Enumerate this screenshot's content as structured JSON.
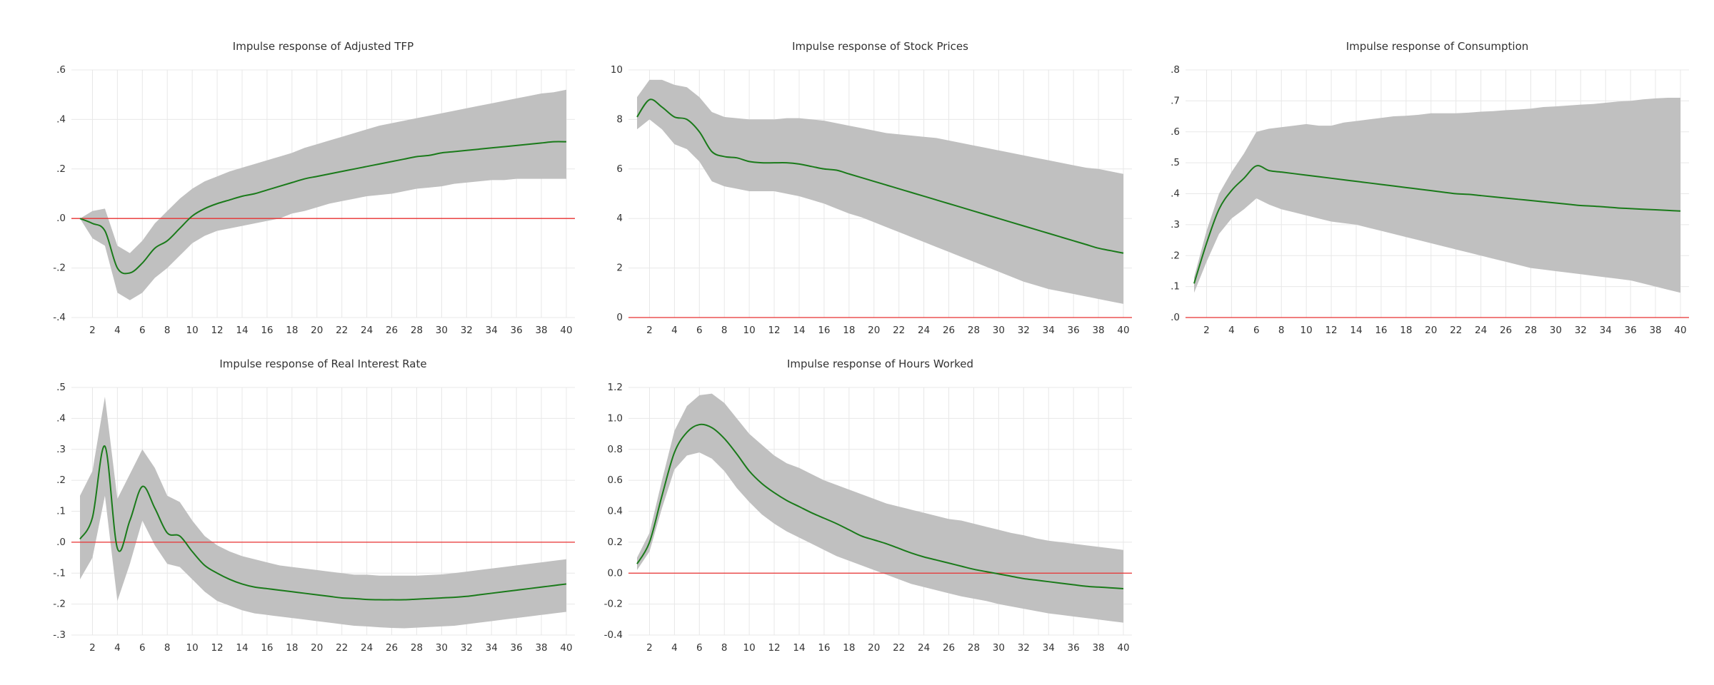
{
  "colors": {
    "band": "#c0c0c0",
    "line": "#1a7a1a",
    "zero": "#e83030",
    "grid": "#e8e8e8",
    "text": "#333333"
  },
  "chart_data": [
    {
      "type": "area",
      "title": "Impulse response of Adjusted TFP",
      "x": [
        1,
        2,
        3,
        4,
        5,
        6,
        7,
        8,
        9,
        10,
        11,
        12,
        13,
        14,
        15,
        16,
        17,
        18,
        19,
        20,
        21,
        22,
        23,
        24,
        25,
        26,
        27,
        28,
        29,
        30,
        31,
        32,
        33,
        34,
        35,
        36,
        37,
        38,
        39,
        40
      ],
      "xticks": [
        2,
        4,
        6,
        8,
        10,
        12,
        14,
        16,
        18,
        20,
        22,
        24,
        26,
        28,
        30,
        32,
        34,
        36,
        38,
        40
      ],
      "ylim": [
        -0.4,
        0.6
      ],
      "yticks": [
        -0.4,
        -0.2,
        0.0,
        0.2,
        0.4,
        0.6
      ],
      "ytick_labels": [
        "-.4",
        "-.2",
        ".0",
        ".2",
        ".4",
        ".6"
      ],
      "zero_line": 0,
      "series": [
        {
          "role": "response",
          "values": [
            0.0,
            -0.02,
            -0.05,
            -0.2,
            -0.22,
            -0.18,
            -0.12,
            -0.09,
            -0.04,
            0.01,
            0.04,
            0.06,
            0.075,
            0.09,
            0.1,
            0.115,
            0.13,
            0.145,
            0.16,
            0.17,
            0.18,
            0.19,
            0.2,
            0.21,
            0.22,
            0.23,
            0.24,
            0.25,
            0.255,
            0.265,
            0.27,
            0.275,
            0.28,
            0.285,
            0.29,
            0.295,
            0.3,
            0.305,
            0.31,
            0.31
          ]
        },
        {
          "role": "upper",
          "values": [
            0.0,
            0.03,
            0.04,
            -0.11,
            -0.14,
            -0.09,
            -0.02,
            0.03,
            0.08,
            0.12,
            0.15,
            0.17,
            0.19,
            0.205,
            0.22,
            0.235,
            0.25,
            0.265,
            0.285,
            0.3,
            0.315,
            0.33,
            0.345,
            0.36,
            0.375,
            0.385,
            0.395,
            0.405,
            0.415,
            0.425,
            0.435,
            0.445,
            0.455,
            0.465,
            0.475,
            0.485,
            0.495,
            0.505,
            0.51,
            0.52
          ]
        },
        {
          "role": "lower",
          "values": [
            0.0,
            -0.08,
            -0.11,
            -0.3,
            -0.33,
            -0.3,
            -0.24,
            -0.2,
            -0.15,
            -0.1,
            -0.07,
            -0.05,
            -0.04,
            -0.03,
            -0.02,
            -0.01,
            0.0,
            0.02,
            0.03,
            0.045,
            0.06,
            0.07,
            0.08,
            0.09,
            0.095,
            0.1,
            0.11,
            0.12,
            0.125,
            0.13,
            0.14,
            0.145,
            0.15,
            0.155,
            0.155,
            0.16,
            0.16,
            0.16,
            0.16,
            0.16
          ]
        }
      ]
    },
    {
      "type": "area",
      "title": "Impulse response of Stock Prices",
      "x": [
        1,
        2,
        3,
        4,
        5,
        6,
        7,
        8,
        9,
        10,
        11,
        12,
        13,
        14,
        15,
        16,
        17,
        18,
        19,
        20,
        21,
        22,
        23,
        24,
        25,
        26,
        27,
        28,
        29,
        30,
        31,
        32,
        33,
        34,
        35,
        36,
        37,
        38,
        39,
        40
      ],
      "xticks": [
        2,
        4,
        6,
        8,
        10,
        12,
        14,
        16,
        18,
        20,
        22,
        24,
        26,
        28,
        30,
        32,
        34,
        36,
        38,
        40
      ],
      "ylim": [
        0,
        10
      ],
      "yticks": [
        0,
        2,
        4,
        6,
        8,
        10
      ],
      "ytick_labels": [
        "0",
        "2",
        "4",
        "6",
        "8",
        "10"
      ],
      "zero_line": 0,
      "series": [
        {
          "role": "response",
          "values": [
            8.1,
            8.8,
            8.5,
            8.1,
            8.0,
            7.5,
            6.7,
            6.5,
            6.45,
            6.3,
            6.25,
            6.25,
            6.25,
            6.2,
            6.1,
            6.0,
            5.95,
            5.8,
            5.65,
            5.5,
            5.35,
            5.2,
            5.05,
            4.9,
            4.75,
            4.6,
            4.45,
            4.3,
            4.15,
            4.0,
            3.85,
            3.7,
            3.55,
            3.4,
            3.25,
            3.1,
            2.95,
            2.8,
            2.7,
            2.6
          ]
        },
        {
          "role": "upper",
          "values": [
            8.9,
            9.6,
            9.6,
            9.4,
            9.3,
            8.9,
            8.3,
            8.1,
            8.05,
            8.0,
            8.0,
            8.0,
            8.05,
            8.05,
            8.0,
            7.95,
            7.85,
            7.75,
            7.65,
            7.55,
            7.45,
            7.4,
            7.35,
            7.3,
            7.25,
            7.15,
            7.05,
            6.95,
            6.85,
            6.75,
            6.65,
            6.55,
            6.45,
            6.35,
            6.25,
            6.15,
            6.05,
            6.0,
            5.9,
            5.8
          ]
        },
        {
          "role": "lower",
          "values": [
            7.6,
            8.0,
            7.6,
            7.0,
            6.8,
            6.3,
            5.5,
            5.3,
            5.2,
            5.1,
            5.1,
            5.1,
            5.0,
            4.9,
            4.75,
            4.6,
            4.4,
            4.2,
            4.05,
            3.85,
            3.65,
            3.45,
            3.25,
            3.05,
            2.85,
            2.65,
            2.45,
            2.25,
            2.05,
            1.85,
            1.65,
            1.45,
            1.3,
            1.15,
            1.05,
            0.95,
            0.85,
            0.75,
            0.65,
            0.55
          ]
        }
      ]
    },
    {
      "type": "area",
      "title": "Impulse response of Consumption",
      "x": [
        1,
        2,
        3,
        4,
        5,
        6,
        7,
        8,
        9,
        10,
        11,
        12,
        13,
        14,
        15,
        16,
        17,
        18,
        19,
        20,
        21,
        22,
        23,
        24,
        25,
        26,
        27,
        28,
        29,
        30,
        31,
        32,
        33,
        34,
        35,
        36,
        37,
        38,
        39,
        40
      ],
      "xticks": [
        2,
        4,
        6,
        8,
        10,
        12,
        14,
        16,
        18,
        20,
        22,
        24,
        26,
        28,
        30,
        32,
        34,
        36,
        38,
        40
      ],
      "ylim": [
        0.0,
        0.8
      ],
      "yticks": [
        0.0,
        0.1,
        0.2,
        0.3,
        0.4,
        0.5,
        0.6,
        0.7,
        0.8
      ],
      "ytick_labels": [
        ".0",
        ".1",
        ".2",
        ".3",
        ".4",
        ".5",
        ".6",
        ".7",
        ".8"
      ],
      "zero_line": 0,
      "series": [
        {
          "role": "response",
          "values": [
            0.11,
            0.24,
            0.35,
            0.41,
            0.45,
            0.49,
            0.475,
            0.47,
            0.465,
            0.46,
            0.455,
            0.45,
            0.445,
            0.44,
            0.435,
            0.43,
            0.425,
            0.42,
            0.415,
            0.41,
            0.405,
            0.4,
            0.398,
            0.394,
            0.39,
            0.386,
            0.382,
            0.378,
            0.374,
            0.37,
            0.366,
            0.362,
            0.36,
            0.357,
            0.354,
            0.352,
            0.35,
            0.348,
            0.346,
            0.344
          ]
        },
        {
          "role": "upper",
          "values": [
            0.13,
            0.28,
            0.4,
            0.47,
            0.53,
            0.6,
            0.61,
            0.615,
            0.62,
            0.625,
            0.62,
            0.62,
            0.63,
            0.635,
            0.64,
            0.645,
            0.65,
            0.652,
            0.655,
            0.66,
            0.66,
            0.66,
            0.662,
            0.665,
            0.667,
            0.67,
            0.672,
            0.675,
            0.68,
            0.682,
            0.685,
            0.688,
            0.69,
            0.694,
            0.698,
            0.7,
            0.705,
            0.708,
            0.71,
            0.71
          ]
        },
        {
          "role": "lower",
          "values": [
            0.08,
            0.18,
            0.27,
            0.32,
            0.35,
            0.385,
            0.365,
            0.35,
            0.34,
            0.33,
            0.32,
            0.31,
            0.305,
            0.3,
            0.29,
            0.28,
            0.27,
            0.26,
            0.25,
            0.24,
            0.23,
            0.22,
            0.21,
            0.2,
            0.19,
            0.18,
            0.17,
            0.16,
            0.155,
            0.15,
            0.145,
            0.14,
            0.135,
            0.13,
            0.125,
            0.12,
            0.11,
            0.1,
            0.09,
            0.08
          ]
        }
      ]
    },
    {
      "type": "area",
      "title": "Impulse response of Real Interest Rate",
      "x": [
        1,
        2,
        3,
        4,
        5,
        6,
        7,
        8,
        9,
        10,
        11,
        12,
        13,
        14,
        15,
        16,
        17,
        18,
        19,
        20,
        21,
        22,
        23,
        24,
        25,
        26,
        27,
        28,
        29,
        30,
        31,
        32,
        33,
        34,
        35,
        36,
        37,
        38,
        39,
        40
      ],
      "xticks": [
        2,
        4,
        6,
        8,
        10,
        12,
        14,
        16,
        18,
        20,
        22,
        24,
        26,
        28,
        30,
        32,
        34,
        36,
        38,
        40
      ],
      "ylim": [
        -0.3,
        0.5
      ],
      "yticks": [
        -0.3,
        -0.2,
        -0.1,
        0.0,
        0.1,
        0.2,
        0.3,
        0.4,
        0.5
      ],
      "ytick_labels": [
        "-.3",
        "-.2",
        "-.1",
        ".0",
        ".1",
        ".2",
        ".3",
        ".4",
        ".5"
      ],
      "zero_line": 0,
      "series": [
        {
          "role": "response",
          "values": [
            0.01,
            0.08,
            0.31,
            -0.02,
            0.07,
            0.18,
            0.11,
            0.03,
            0.02,
            -0.03,
            -0.075,
            -0.1,
            -0.12,
            -0.135,
            -0.145,
            -0.15,
            -0.155,
            -0.16,
            -0.165,
            -0.17,
            -0.175,
            -0.18,
            -0.182,
            -0.185,
            -0.186,
            -0.186,
            -0.186,
            -0.184,
            -0.182,
            -0.18,
            -0.178,
            -0.175,
            -0.17,
            -0.165,
            -0.16,
            -0.155,
            -0.15,
            -0.145,
            -0.14,
            -0.135
          ]
        },
        {
          "role": "upper",
          "values": [
            0.15,
            0.23,
            0.47,
            0.14,
            0.22,
            0.3,
            0.24,
            0.15,
            0.13,
            0.07,
            0.02,
            -0.01,
            -0.03,
            -0.045,
            -0.055,
            -0.065,
            -0.075,
            -0.08,
            -0.085,
            -0.09,
            -0.095,
            -0.1,
            -0.105,
            -0.105,
            -0.108,
            -0.108,
            -0.108,
            -0.108,
            -0.106,
            -0.104,
            -0.1,
            -0.095,
            -0.09,
            -0.085,
            -0.08,
            -0.075,
            -0.07,
            -0.065,
            -0.06,
            -0.055
          ]
        },
        {
          "role": "lower",
          "values": [
            -0.12,
            -0.05,
            0.15,
            -0.19,
            -0.07,
            0.07,
            -0.01,
            -0.07,
            -0.08,
            -0.12,
            -0.16,
            -0.19,
            -0.205,
            -0.22,
            -0.23,
            -0.235,
            -0.24,
            -0.245,
            -0.25,
            -0.255,
            -0.26,
            -0.265,
            -0.27,
            -0.272,
            -0.275,
            -0.277,
            -0.278,
            -0.276,
            -0.274,
            -0.272,
            -0.27,
            -0.265,
            -0.26,
            -0.255,
            -0.25,
            -0.245,
            -0.24,
            -0.235,
            -0.23,
            -0.225
          ]
        }
      ]
    },
    {
      "type": "area",
      "title": "Impulse response of Hours Worked",
      "x": [
        1,
        2,
        3,
        4,
        5,
        6,
        7,
        8,
        9,
        10,
        11,
        12,
        13,
        14,
        15,
        16,
        17,
        18,
        19,
        20,
        21,
        22,
        23,
        24,
        25,
        26,
        27,
        28,
        29,
        30,
        31,
        32,
        33,
        34,
        35,
        36,
        37,
        38,
        39,
        40
      ],
      "xticks": [
        2,
        4,
        6,
        8,
        10,
        12,
        14,
        16,
        18,
        20,
        22,
        24,
        26,
        28,
        30,
        32,
        34,
        36,
        38,
        40
      ],
      "ylim": [
        -0.4,
        1.2
      ],
      "yticks": [
        -0.4,
        -0.2,
        0.0,
        0.2,
        0.4,
        0.6,
        0.8,
        1.0,
        1.2
      ],
      "ytick_labels": [
        "-0.4",
        "-0.2",
        "0.0",
        "0.2",
        "0.4",
        "0.6",
        "0.8",
        "1.0",
        "1.2"
      ],
      "zero_line": 0,
      "series": [
        {
          "role": "response",
          "values": [
            0.06,
            0.2,
            0.5,
            0.78,
            0.91,
            0.96,
            0.94,
            0.87,
            0.77,
            0.66,
            0.58,
            0.52,
            0.47,
            0.43,
            0.39,
            0.355,
            0.32,
            0.28,
            0.24,
            0.215,
            0.19,
            0.16,
            0.13,
            0.105,
            0.085,
            0.065,
            0.045,
            0.025,
            0.01,
            -0.005,
            -0.02,
            -0.035,
            -0.045,
            -0.055,
            -0.065,
            -0.075,
            -0.085,
            -0.09,
            -0.095,
            -0.1
          ]
        },
        {
          "role": "upper",
          "values": [
            0.1,
            0.26,
            0.6,
            0.92,
            1.08,
            1.15,
            1.16,
            1.1,
            1.0,
            0.9,
            0.83,
            0.76,
            0.71,
            0.68,
            0.64,
            0.6,
            0.57,
            0.54,
            0.51,
            0.48,
            0.45,
            0.43,
            0.41,
            0.39,
            0.37,
            0.35,
            0.34,
            0.32,
            0.3,
            0.28,
            0.26,
            0.245,
            0.225,
            0.21,
            0.2,
            0.19,
            0.18,
            0.17,
            0.16,
            0.15
          ]
        },
        {
          "role": "lower",
          "values": [
            0.02,
            0.14,
            0.42,
            0.67,
            0.76,
            0.78,
            0.74,
            0.66,
            0.55,
            0.46,
            0.38,
            0.32,
            0.27,
            0.23,
            0.19,
            0.15,
            0.11,
            0.08,
            0.05,
            0.02,
            -0.01,
            -0.04,
            -0.07,
            -0.09,
            -0.11,
            -0.13,
            -0.15,
            -0.165,
            -0.18,
            -0.2,
            -0.215,
            -0.23,
            -0.245,
            -0.26,
            -0.27,
            -0.28,
            -0.29,
            -0.3,
            -0.31,
            -0.32
          ]
        }
      ]
    }
  ]
}
